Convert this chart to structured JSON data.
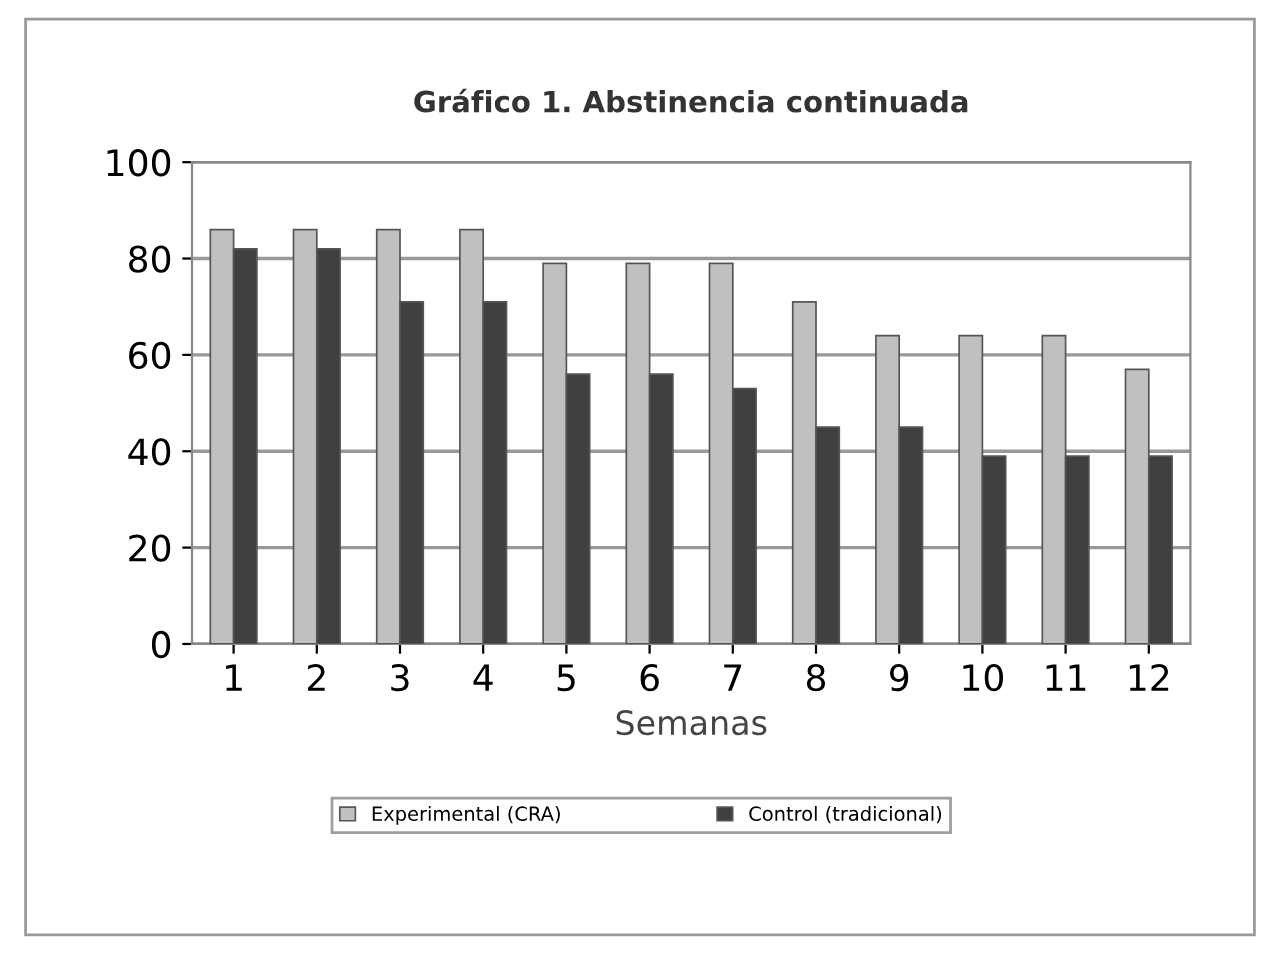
{
  "chart_data": {
    "type": "bar",
    "title": "Gráfico 1. Abstinencia continuada",
    "xlabel": "Semanas",
    "categories": [
      "1",
      "2",
      "3",
      "4",
      "5",
      "6",
      "7",
      "8",
      "9",
      "10",
      "11",
      "12"
    ],
    "series": [
      {
        "name": "Experimental (CRA)",
        "color": "#c0c0c0",
        "values": [
          86,
          86,
          86,
          86,
          79,
          79,
          79,
          71,
          64,
          64,
          64,
          57
        ]
      },
      {
        "name": "Control (tradicional)",
        "color": "#404040",
        "values": [
          82,
          82,
          71,
          71,
          56,
          56,
          53,
          45,
          45,
          39,
          39,
          39
        ]
      }
    ],
    "ylim": [
      0,
      100
    ],
    "yticks": [
      0,
      20,
      40,
      60,
      80,
      100
    ],
    "grid": "y",
    "legend": "bottom"
  }
}
